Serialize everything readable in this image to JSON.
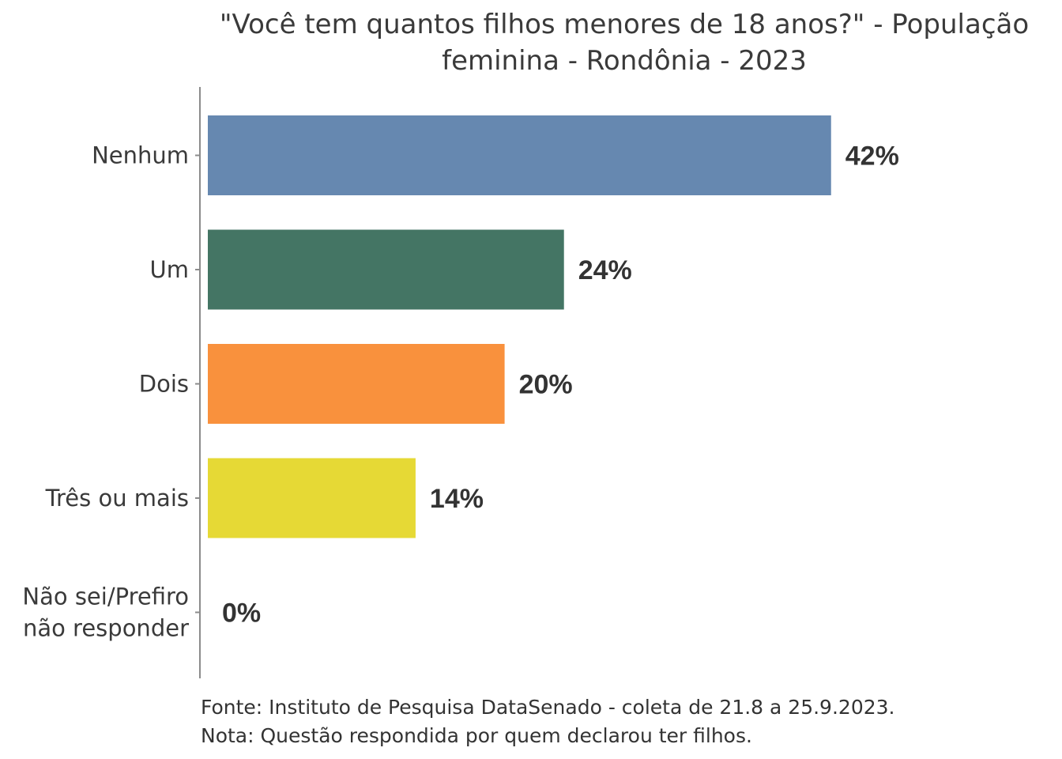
{
  "chart_data": {
    "type": "bar",
    "orientation": "horizontal",
    "title_lines": [
      "\"Você tem quantos filhos menores de 18 anos?\" - População",
      "feminina - Rondônia - 2023"
    ],
    "categories": [
      [
        "Nenhum"
      ],
      [
        "Um"
      ],
      [
        "Dois"
      ],
      [
        "Três ou mais"
      ],
      [
        "Não sei/Prefiro",
        "não responder"
      ]
    ],
    "values": [
      42,
      24,
      20,
      14,
      0
    ],
    "value_labels": [
      "42%",
      "24%",
      "20%",
      "14%",
      "0%"
    ],
    "colors": [
      "#6688b0",
      "#447564",
      "#f9913d",
      "#e6d935",
      "#9b59b6"
    ],
    "xlim": [
      0,
      50
    ],
    "grid": false,
    "legend": "none",
    "notes": [
      "Fonte: Instituto de Pesquisa DataSenado - coleta de 21.8 a 25.9.2023.",
      "Nota: Questão respondida por quem declarou ter filhos."
    ]
  }
}
